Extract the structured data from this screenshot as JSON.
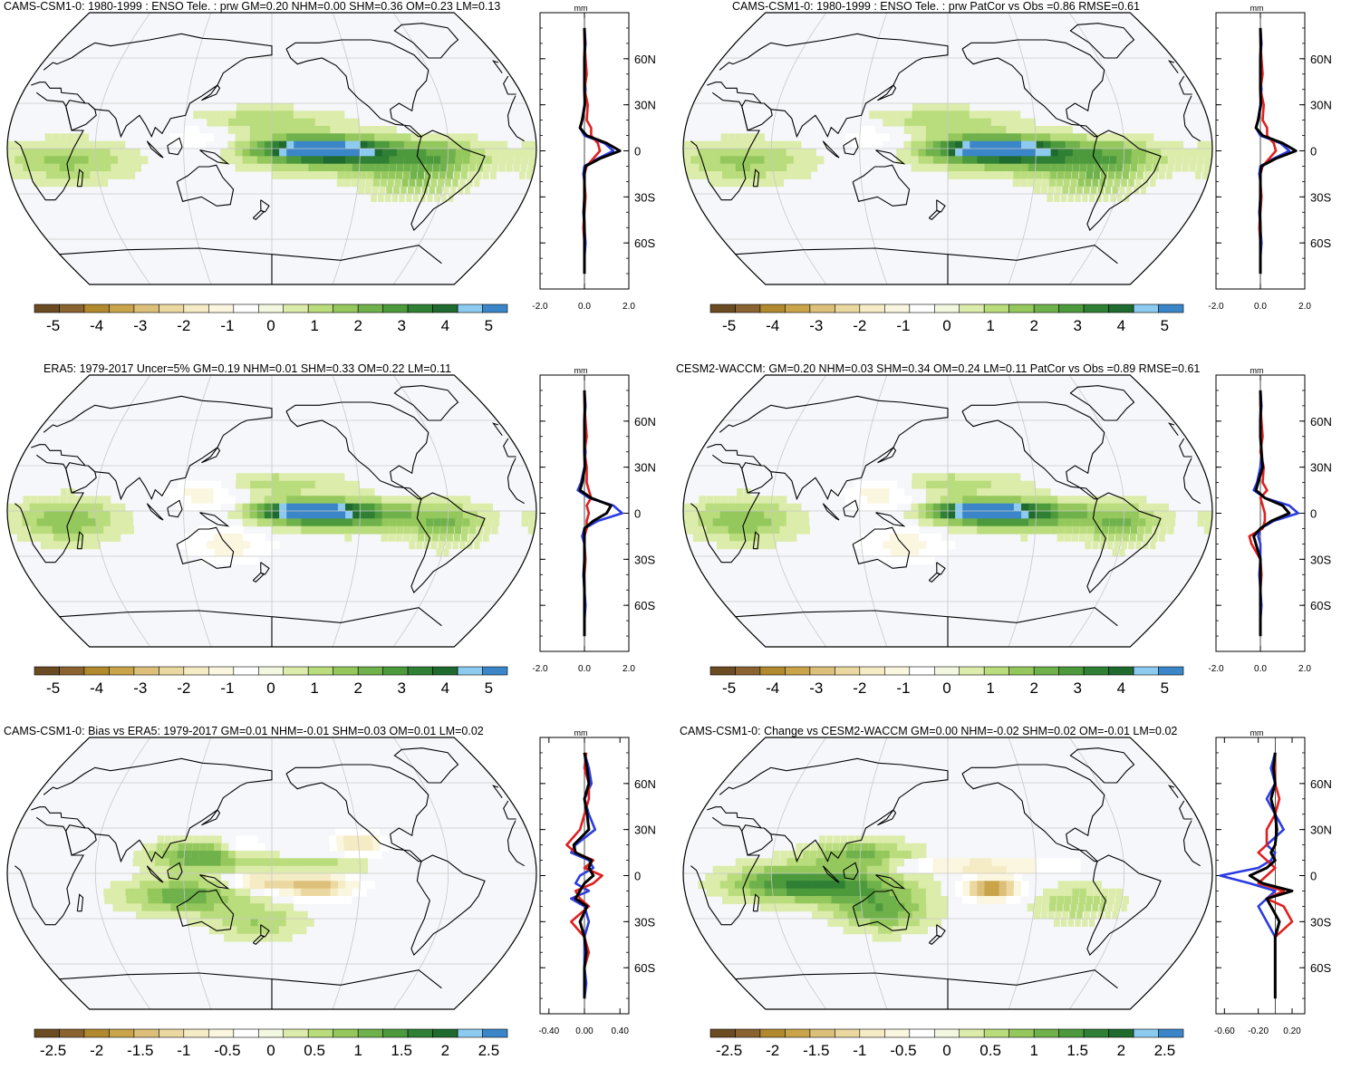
{
  "colors": {
    "palette": [
      "#6b4b22",
      "#8a6330",
      "#b1892e",
      "#c9a44b",
      "#dcc07a",
      "#ebd8a0",
      "#f5ebc4",
      "#fbf6e0",
      "#ffffff",
      "#f3f8e0",
      "#dcecaa",
      "#b9dc7c",
      "#94c85c",
      "#6fb14a",
      "#4c9a3c",
      "#2f7f34",
      "#1f6a2e",
      "#8ccaf0",
      "#3a86c8"
    ],
    "ocean": "#f6f7fb",
    "obs_line": "#2b3be0",
    "model_line": "#e02020",
    "ens_line": "#000000"
  },
  "panels": [
    {
      "title": "CAMS-CSM1-0: 1980-1999 : ENSO Tele. : prw GM=0.20 NHM=0.00 SHM=0.36 OM=0.23 LM=0.13",
      "colorbar_labels": [
        "-5",
        "-4",
        "-3",
        "-2",
        "-1",
        "0",
        "1",
        "2",
        "3",
        "4",
        "5"
      ],
      "zonal_unit": "mm",
      "zonal_x_ticks": [
        "-2.0",
        "0.0",
        "2.0"
      ],
      "zonal_xlim": [
        -2.0,
        2.0
      ],
      "zonal_y_ticks": [
        "60N",
        "30N",
        "0",
        "30S",
        "60S"
      ],
      "pattern": "enso"
    },
    {
      "title": "CAMS-CSM1-0: 1980-1999 : ENSO Tele. : prw PatCor vs Obs =0.86 RMSE=0.61",
      "colorbar_labels": [
        "-5",
        "-4",
        "-3",
        "-2",
        "-1",
        "0",
        "1",
        "2",
        "3",
        "4",
        "5"
      ],
      "zonal_unit": "mm",
      "zonal_x_ticks": [
        "-2.0",
        "0.0",
        "2.0"
      ],
      "zonal_xlim": [
        -2.0,
        2.0
      ],
      "zonal_y_ticks": [
        "60N",
        "30N",
        "0",
        "30S",
        "60S"
      ],
      "pattern": "enso"
    },
    {
      "title": "ERA5: 1979-2017 Uncer=5% GM=0.19 NHM=0.01 SHM=0.33 OM=0.22 LM=0.11",
      "colorbar_labels": [
        "-5",
        "-4",
        "-3",
        "-2",
        "-1",
        "0",
        "1",
        "2",
        "3",
        "4",
        "5"
      ],
      "zonal_unit": "mm",
      "zonal_x_ticks": [
        "-2.0",
        "0.0",
        "2.0"
      ],
      "zonal_xlim": [
        -2.0,
        2.0
      ],
      "zonal_y_ticks": [
        "60N",
        "30N",
        "0",
        "30S",
        "60S"
      ],
      "pattern": "enso_obs"
    },
    {
      "title": "CESM2-WACCM: GM=0.20 NHM=0.03 SHM=0.34 OM=0.24 LM=0.11 PatCor vs Obs =0.89 RMSE=0.61",
      "colorbar_labels": [
        "-5",
        "-4",
        "-3",
        "-2",
        "-1",
        "0",
        "1",
        "2",
        "3",
        "4",
        "5"
      ],
      "zonal_unit": "mm",
      "zonal_x_ticks": [
        "-2.0",
        "0.0",
        "2.0"
      ],
      "zonal_xlim": [
        -2.0,
        2.0
      ],
      "zonal_y_ticks": [
        "60N",
        "30N",
        "0",
        "30S",
        "60S"
      ],
      "pattern": "enso_obs"
    },
    {
      "title": "CAMS-CSM1-0: Bias vs ERA5: 1979-2017 GM=0.01 NHM=-0.01 SHM=0.03 OM=0.01 LM=0.02",
      "colorbar_labels": [
        "-2.5",
        "-2",
        "-1.5",
        "-1",
        "-0.5",
        "0",
        "0.5",
        "1",
        "1.5",
        "2",
        "2.5"
      ],
      "zonal_unit": "mm",
      "zonal_x_ticks": [
        "-0.40",
        "0.00",
        "0.40"
      ],
      "zonal_xlim": [
        -0.5,
        0.5
      ],
      "zonal_y_ticks": [
        "60N",
        "30N",
        "0",
        "30S",
        "60S"
      ],
      "pattern": "bias"
    },
    {
      "title": "CAMS-CSM1-0: Change vs CESM2-WACCM GM=0.00 NHM=-0.02 SHM=0.02 OM=-0.01 LM=0.02",
      "colorbar_labels": [
        "-2.5",
        "-2",
        "-1.5",
        "-1",
        "-0.5",
        "0",
        "0.5",
        "1",
        "1.5",
        "2",
        "2.5"
      ],
      "zonal_unit": "mm",
      "zonal_x_ticks": [
        "-0.60",
        "-0.20",
        "0.20"
      ],
      "zonal_xlim": [
        -0.7,
        0.35
      ],
      "zonal_y_ticks": [
        "60N",
        "30N",
        "0",
        "30S",
        "60S"
      ],
      "pattern": "change"
    }
  ],
  "chart_data": [
    {
      "type": "line",
      "title": "CAMS-CSM1-0: 1980-1999 : ENSO Tele. : prw GM=0.20 NHM=0.00 SHM=0.36 OM=0.23 LM=0.13",
      "xlabel": "mm",
      "xlim": [
        -2.0,
        2.0
      ],
      "ylim": [
        -90,
        90
      ],
      "y_lat": [
        80,
        70,
        60,
        50,
        40,
        30,
        20,
        15,
        10,
        5,
        0,
        -5,
        -10,
        -15,
        -20,
        -30,
        -40,
        -50,
        -60,
        -70,
        -80
      ],
      "series": [
        {
          "values": [
            0.0,
            0.05,
            0.0,
            0.0,
            0.05,
            0.0,
            -0.1,
            -0.2,
            0.0,
            0.9,
            1.3,
            0.6,
            0.0,
            -0.05,
            0.0,
            0.0,
            -0.05,
            0.0,
            0.05,
            0.0,
            0.0
          ]
        },
        {
          "values": [
            0.0,
            0.0,
            0.05,
            0.1,
            0.0,
            0.15,
            0.1,
            0.3,
            0.3,
            0.6,
            0.7,
            0.4,
            0.1,
            0.0,
            0.0,
            0.05,
            0.0,
            -0.05,
            0.0,
            0.0,
            0.0
          ]
        },
        {
          "values": [
            0.0,
            0.02,
            0.0,
            0.0,
            0.0,
            0.02,
            -0.1,
            -0.2,
            0.1,
            1.0,
            1.6,
            0.7,
            0.05,
            0.0,
            0.0,
            0.0,
            -0.02,
            0.0,
            0.0,
            0.0,
            0.0
          ]
        }
      ]
    },
    {
      "type": "line",
      "title": "CAMS-CSM1-0: 1980-1999 : ENSO Tele. : prw PatCor vs Obs =0.86 RMSE=0.61",
      "xlabel": "mm",
      "xlim": [
        -2.0,
        2.0
      ],
      "ylim": [
        -90,
        90
      ],
      "y_lat": [
        80,
        70,
        60,
        50,
        40,
        30,
        20,
        15,
        10,
        5,
        0,
        -5,
        -10,
        -15,
        -20,
        -30,
        -40,
        -50,
        -60,
        -70,
        -80
      ],
      "series": [
        {
          "values": [
            0.0,
            0.05,
            0.0,
            0.0,
            0.05,
            0.0,
            -0.1,
            -0.2,
            0.0,
            0.9,
            1.3,
            0.6,
            0.0,
            -0.05,
            0.0,
            0.0,
            -0.05,
            0.0,
            0.05,
            0.0,
            0.0
          ]
        },
        {
          "values": [
            0.0,
            0.0,
            0.05,
            0.1,
            0.0,
            0.15,
            0.1,
            0.3,
            0.3,
            0.6,
            0.7,
            0.4,
            0.1,
            0.0,
            0.0,
            0.05,
            0.0,
            -0.05,
            0.0,
            0.0,
            0.0
          ]
        },
        {
          "values": [
            0.0,
            0.02,
            0.0,
            0.0,
            0.0,
            0.02,
            -0.1,
            -0.2,
            0.1,
            1.0,
            1.6,
            0.7,
            0.05,
            0.0,
            0.0,
            0.0,
            -0.02,
            0.0,
            0.0,
            0.0,
            0.0
          ]
        }
      ]
    },
    {
      "type": "line",
      "title": "ERA5: 1979-2017 Uncer=5% GM=0.19 NHM=0.01 SHM=0.33 OM=0.22 LM=0.11",
      "xlabel": "mm",
      "xlim": [
        -2.0,
        2.0
      ],
      "ylim": [
        -90,
        90
      ],
      "y_lat": [
        80,
        70,
        60,
        50,
        40,
        30,
        20,
        15,
        10,
        5,
        0,
        -5,
        -10,
        -15,
        -20,
        -30,
        -40,
        -50,
        -60,
        -70,
        -80
      ],
      "series": [
        {
          "values": [
            0.0,
            0.05,
            0.0,
            0.0,
            0.05,
            0.0,
            -0.15,
            -0.3,
            0.2,
            1.3,
            1.7,
            0.6,
            0.0,
            -0.1,
            0.0,
            0.0,
            -0.05,
            0.0,
            0.05,
            0.0,
            0.0
          ]
        },
        {
          "values": [
            0.0,
            0.0,
            0.05,
            0.1,
            0.0,
            0.1,
            0.1,
            0.2,
            0.3,
            0.1,
            0.2,
            0.1,
            0.1,
            0.0,
            0.0,
            0.05,
            0.0,
            0.0,
            0.0,
            0.0,
            0.0
          ]
        },
        {
          "values": [
            0.0,
            0.02,
            0.0,
            0.0,
            0.0,
            0.02,
            -0.1,
            -0.2,
            0.3,
            1.2,
            1.0,
            0.4,
            0.0,
            0.0,
            0.0,
            0.0,
            -0.02,
            0.0,
            0.0,
            0.0,
            0.0
          ]
        }
      ]
    },
    {
      "type": "line",
      "title": "CESM2-WACCM: GM=0.20 NHM=0.03 SHM=0.34 OM=0.24 LM=0.11 PatCor vs Obs =0.89 RMSE=0.61",
      "xlabel": "mm",
      "xlim": [
        -2.0,
        2.0
      ],
      "ylim": [
        -90,
        90
      ],
      "y_lat": [
        80,
        70,
        60,
        50,
        40,
        30,
        20,
        15,
        10,
        5,
        0,
        -5,
        -10,
        -15,
        -20,
        -30,
        -40,
        -50,
        -60,
        -70,
        -80
      ],
      "series": [
        {
          "values": [
            0.0,
            0.05,
            0.0,
            0.0,
            0.05,
            0.0,
            -0.15,
            -0.3,
            0.2,
            1.3,
            1.7,
            0.6,
            0.0,
            -0.1,
            0.0,
            0.0,
            -0.05,
            0.0,
            0.05,
            0.0,
            0.0
          ]
        },
        {
          "values": [
            0.0,
            0.0,
            0.05,
            0.1,
            0.0,
            0.15,
            0.1,
            0.3,
            0.0,
            0.1,
            0.2,
            0.2,
            0.1,
            -0.5,
            -0.4,
            0.0,
            0.05,
            0.0,
            0.0,
            0.0,
            0.0
          ]
        },
        {
          "values": [
            0.0,
            0.02,
            0.0,
            0.0,
            0.05,
            0.1,
            -0.1,
            -0.2,
            0.2,
            1.0,
            1.3,
            0.5,
            0.0,
            -0.3,
            -0.2,
            0.0,
            0.0,
            0.0,
            0.0,
            0.0,
            0.0
          ]
        }
      ]
    },
    {
      "type": "line",
      "title": "CAMS-CSM1-0: Bias vs ERA5: 1979-2017 GM=0.01 NHM=-0.01 SHM=0.03 OM=0.01 LM=0.02",
      "xlabel": "mm",
      "xlim": [
        -0.5,
        0.5
      ],
      "ylim": [
        -90,
        90
      ],
      "y_lat": [
        80,
        70,
        60,
        50,
        40,
        30,
        20,
        15,
        10,
        5,
        0,
        -5,
        -10,
        -15,
        -20,
        -30,
        -40,
        -50,
        -60,
        -70,
        -80
      ],
      "series": [
        {
          "values": [
            0.0,
            0.05,
            0.08,
            0.0,
            0.05,
            0.12,
            -0.1,
            -0.15,
            0.05,
            0.1,
            -0.05,
            -0.1,
            0.05,
            -0.15,
            0.0,
            0.05,
            0.0,
            0.0,
            0.0,
            0.02,
            0.0
          ]
        },
        {
          "values": [
            0.02,
            0.0,
            0.05,
            0.05,
            0.0,
            -0.05,
            -0.2,
            -0.1,
            0.1,
            0.0,
            0.2,
            0.1,
            -0.1,
            -0.05,
            0.05,
            -0.15,
            0.0,
            0.05,
            0.0,
            0.0,
            0.0
          ]
        },
        {
          "values": [
            0.0,
            0.03,
            0.05,
            0.0,
            0.03,
            0.05,
            -0.12,
            -0.1,
            0.08,
            0.05,
            0.1,
            0.0,
            -0.05,
            -0.1,
            0.03,
            -0.05,
            0.0,
            0.02,
            0.0,
            0.0,
            0.0
          ]
        }
      ]
    },
    {
      "type": "line",
      "title": "CAMS-CSM1-0: Change vs CESM2-WACCM GM=0.00 NHM=-0.02 SHM=0.02 OM=-0.01 LM=0.02",
      "xlabel": "mm",
      "xlim": [
        -0.7,
        0.35
      ],
      "ylim": [
        -90,
        90
      ],
      "y_lat": [
        80,
        70,
        60,
        50,
        40,
        30,
        20,
        15,
        10,
        5,
        0,
        -5,
        -10,
        -15,
        -20,
        -30,
        -40,
        -50,
        -60,
        -70,
        -80
      ],
      "series": [
        {
          "values": [
            0.0,
            -0.05,
            0.0,
            -0.1,
            0.0,
            0.1,
            -0.1,
            0.0,
            -0.05,
            -0.2,
            -0.65,
            -0.3,
            0.0,
            -0.1,
            -0.2,
            -0.1,
            0.0,
            0.0,
            0.0,
            0.0,
            0.0
          ]
        },
        {
          "values": [
            0.0,
            0.0,
            0.0,
            0.05,
            0.0,
            -0.1,
            -0.1,
            -0.2,
            -0.1,
            0.0,
            -0.1,
            -0.2,
            0.1,
            -0.1,
            0.1,
            0.2,
            0.0,
            0.0,
            0.0,
            0.0,
            0.0
          ]
        },
        {
          "values": [
            0.0,
            -0.02,
            0.0,
            -0.05,
            0.0,
            0.02,
            0.0,
            -0.05,
            0.0,
            -0.1,
            -0.3,
            -0.15,
            0.2,
            -0.1,
            -0.05,
            0.05,
            0.0,
            0.0,
            0.0,
            0.0,
            0.0
          ]
        }
      ]
    }
  ]
}
